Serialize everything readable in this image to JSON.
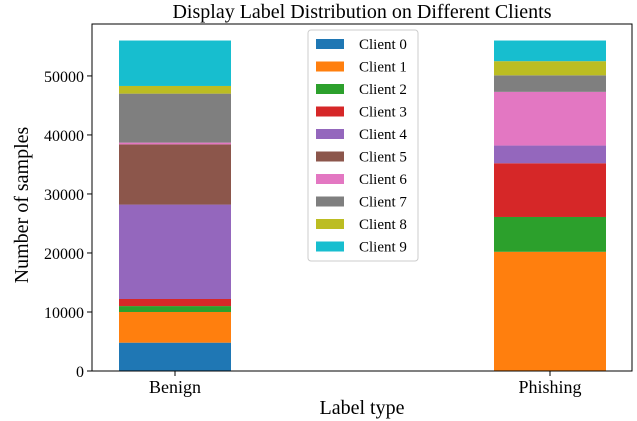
{
  "chart_data": {
    "type": "bar",
    "stacked": true,
    "title": "Display Label Distribution on Different Clients",
    "xlabel": "Label type",
    "ylabel": "Number of samples",
    "categories": [
      "Benign",
      "Phishing"
    ],
    "ylim": [
      0,
      58800
    ],
    "yticks": [
      "0",
      "10000",
      "20000",
      "30000",
      "40000",
      "50000"
    ],
    "grid": false,
    "legend_position": "top-center",
    "series": [
      {
        "name": "Client 0",
        "color": "#1f77b4",
        "values": [
          4800,
          0
        ]
      },
      {
        "name": "Client 1",
        "color": "#ff7f0e",
        "values": [
          5200,
          20200
        ]
      },
      {
        "name": "Client 2",
        "color": "#2ca02c",
        "values": [
          1000,
          5900
        ]
      },
      {
        "name": "Client 3",
        "color": "#d62728",
        "values": [
          1200,
          9100
        ]
      },
      {
        "name": "Client 4",
        "color": "#9467bd",
        "values": [
          16000,
          3000
        ]
      },
      {
        "name": "Client 5",
        "color": "#8c564b",
        "values": [
          10200,
          0
        ]
      },
      {
        "name": "Client 6",
        "color": "#e377c2",
        "values": [
          300,
          9100
        ]
      },
      {
        "name": "Client 7",
        "color": "#7f7f7f",
        "values": [
          8300,
          2800
        ]
      },
      {
        "name": "Client 8",
        "color": "#bcbd22",
        "values": [
          1300,
          2400
        ]
      },
      {
        "name": "Client 9",
        "color": "#17becf",
        "values": [
          7700,
          3500
        ]
      }
    ]
  }
}
